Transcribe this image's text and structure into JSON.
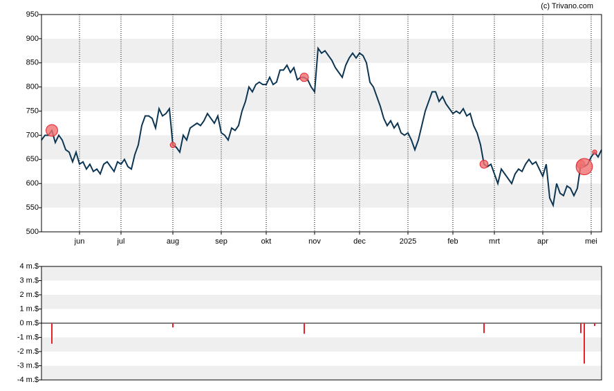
{
  "source": "(c) Trivano.com",
  "chart_data": [
    {
      "type": "line",
      "categories": [
        null,
        null,
        null,
        null,
        null,
        null,
        null,
        null,
        null,
        null,
        null,
        "jun",
        null,
        null,
        null,
        null,
        null,
        null,
        null,
        null,
        null,
        null,
        null,
        "jul",
        null,
        null,
        null,
        null,
        null,
        null,
        null,
        null,
        null,
        null,
        null,
        null,
        null,
        null,
        "aug",
        null,
        null,
        null,
        null,
        null,
        null,
        null,
        null,
        null,
        null,
        null,
        null,
        null,
        "sep",
        null,
        null,
        null,
        null,
        null,
        null,
        null,
        null,
        null,
        null,
        null,
        null,
        "okt",
        null,
        null,
        null,
        null,
        null,
        null,
        null,
        null,
        null,
        null,
        null,
        null,
        null,
        "nov",
        null,
        null,
        null,
        null,
        null,
        null,
        null,
        null,
        null,
        null,
        null,
        null,
        "dec",
        null,
        null,
        null,
        null,
        null,
        null,
        null,
        null,
        null,
        null,
        null,
        null,
        null,
        "2025",
        null,
        null,
        null,
        null,
        null,
        null,
        null,
        null,
        null,
        null,
        null,
        null,
        "feb",
        null,
        null,
        null,
        null,
        null,
        null,
        null,
        null,
        null,
        null,
        null,
        "mrt",
        null,
        null,
        null,
        null,
        null,
        null,
        null,
        null,
        null,
        null,
        null,
        null,
        null,
        "apr",
        null,
        null,
        null,
        null,
        null,
        null,
        null,
        null,
        null,
        null,
        null,
        null,
        null,
        "mei",
        null,
        null,
        null
      ],
      "series": [
        {
          "color": "#0b3553",
          "values": [
            690,
            700,
            700,
            710,
            685,
            700,
            690,
            670,
            665,
            645,
            665,
            640,
            645,
            630,
            640,
            625,
            630,
            620,
            640,
            645,
            635,
            625,
            645,
            640,
            650,
            635,
            630,
            660,
            680,
            720,
            740,
            740,
            735,
            715,
            755,
            740,
            745,
            755,
            680,
            675,
            665,
            700,
            690,
            715,
            720,
            725,
            720,
            730,
            745,
            735,
            725,
            740,
            705,
            700,
            690,
            715,
            710,
            720,
            750,
            770,
            800,
            790,
            805,
            810,
            805,
            805,
            820,
            805,
            810,
            835,
            835,
            845,
            830,
            840,
            815,
            820,
            820,
            815,
            800,
            790,
            880,
            870,
            875,
            865,
            855,
            840,
            830,
            820,
            845,
            860,
            870,
            860,
            870,
            865,
            850,
            810,
            800,
            780,
            760,
            735,
            720,
            730,
            715,
            725,
            705,
            700,
            705,
            690,
            670,
            690,
            720,
            750,
            770,
            790,
            790,
            770,
            780,
            765,
            755,
            745,
            750,
            745,
            755,
            740,
            745,
            720,
            705,
            680,
            640,
            635,
            640,
            620,
            600,
            630,
            620,
            610,
            600,
            620,
            630,
            625,
            640,
            650,
            640,
            645,
            630,
            615,
            640,
            570,
            555,
            600,
            580,
            575,
            595,
            590,
            575,
            590,
            640,
            635,
            640,
            655,
            665,
            655,
            670
          ]
        }
      ],
      "marker_color": "#f07070",
      "ylim": [
        500,
        950
      ],
      "yticks": [
        500,
        550,
        600,
        650,
        700,
        750,
        800,
        850,
        900,
        950
      ],
      "grid": true
    },
    {
      "type": "bar",
      "color": "#e8202a",
      "values": [
        null,
        null,
        null,
        -1.45,
        null,
        null,
        null,
        null,
        null,
        null,
        null,
        null,
        null,
        null,
        null,
        null,
        null,
        null,
        null,
        null,
        null,
        null,
        null,
        null,
        null,
        null,
        null,
        null,
        null,
        null,
        null,
        null,
        null,
        null,
        null,
        null,
        null,
        null,
        -0.3,
        null,
        null,
        null,
        null,
        null,
        null,
        null,
        null,
        null,
        null,
        null,
        null,
        null,
        null,
        null,
        null,
        null,
        null,
        null,
        null,
        null,
        null,
        null,
        null,
        null,
        null,
        null,
        null,
        null,
        null,
        null,
        null,
        null,
        null,
        null,
        null,
        null,
        -0.75,
        null,
        null,
        null,
        null,
        null,
        null,
        null,
        null,
        null,
        null,
        null,
        null,
        null,
        null,
        null,
        null,
        null,
        null,
        null,
        null,
        null,
        null,
        null,
        null,
        null,
        null,
        null,
        null,
        null,
        null,
        null,
        null,
        null,
        null,
        null,
        null,
        null,
        null,
        null,
        null,
        null,
        null,
        null,
        null,
        null,
        null,
        null,
        null,
        null,
        null,
        null,
        -0.7,
        null,
        null,
        null,
        null,
        null,
        null,
        null,
        null,
        null,
        null,
        null,
        null,
        null,
        null,
        null,
        null,
        null,
        null,
        null,
        null,
        null,
        null,
        null,
        null,
        null,
        null,
        null,
        -0.7,
        -2.85,
        null,
        null,
        -0.2,
        null,
        null
      ],
      "ylim": [
        -4,
        4
      ],
      "yticks": [
        {
          "value": -4,
          "label": "-4 m.$"
        },
        {
          "value": -3,
          "label": "-3 m.$"
        },
        {
          "value": -2,
          "label": "-2 m.$"
        },
        {
          "value": -1,
          "label": "-1 m.$"
        },
        {
          "value": 0,
          "label": "0 m.$"
        },
        {
          "value": 1,
          "label": "1 m.$"
        },
        {
          "value": 2,
          "label": "2 m.$"
        },
        {
          "value": 3,
          "label": "3 m.$"
        },
        {
          "value": 4,
          "label": "4 m.$"
        }
      ]
    }
  ]
}
